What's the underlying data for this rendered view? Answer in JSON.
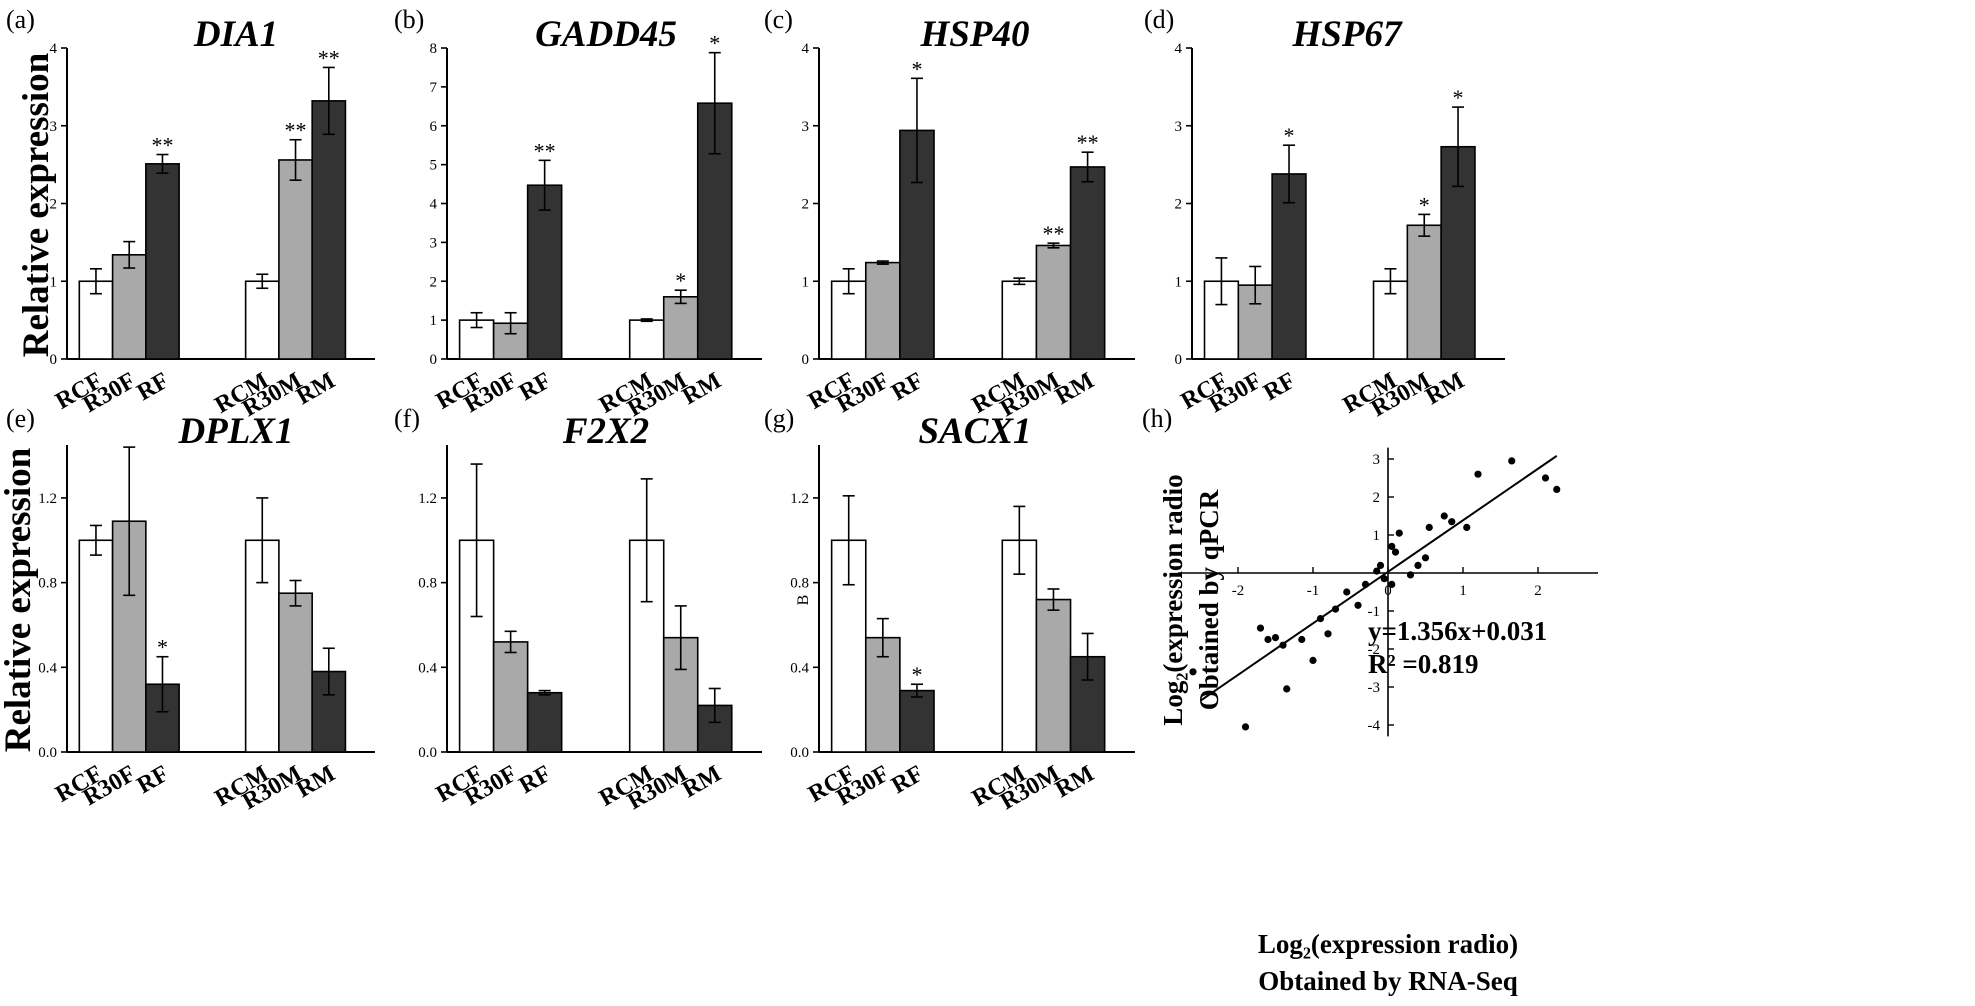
{
  "y_label": "Relative expression",
  "chart_data": [
    {
      "type": "bar",
      "panel": "(a)",
      "title": "DIA1",
      "ylabel": "Relative expression",
      "ylim": [
        0,
        4
      ],
      "yticks": [
        0,
        1,
        2,
        3,
        4
      ],
      "categories": [
        "RCF",
        "R30F",
        "RF",
        "RCM",
        "R30M",
        "RM"
      ],
      "values": [
        1.0,
        1.34,
        2.51,
        1.0,
        2.56,
        3.32
      ],
      "errors": [
        0.16,
        0.17,
        0.12,
        0.09,
        0.26,
        0.43
      ],
      "significance": [
        "",
        "",
        "**",
        "",
        "**",
        "**"
      ]
    },
    {
      "type": "bar",
      "panel": "(b)",
      "title": "GADD45",
      "ylabel": "",
      "ylim": [
        0,
        8
      ],
      "yticks": [
        0,
        1,
        2,
        3,
        4,
        5,
        6,
        7,
        8
      ],
      "categories": [
        "RCF",
        "R30F",
        "RF",
        "RCM",
        "R30M",
        "RM"
      ],
      "values": [
        1.0,
        0.92,
        4.47,
        1.0,
        1.6,
        6.58
      ],
      "errors": [
        0.19,
        0.27,
        0.64,
        0.03,
        0.17,
        1.3
      ],
      "significance": [
        "",
        "",
        "**",
        "",
        "*",
        "*"
      ]
    },
    {
      "type": "bar",
      "panel": "(c)",
      "title": "HSP40",
      "ylabel": "",
      "ylim": [
        0,
        4
      ],
      "yticks": [
        0,
        1,
        2,
        3,
        4
      ],
      "categories": [
        "RCF",
        "R30F",
        "RF",
        "RCM",
        "R30M",
        "RM"
      ],
      "values": [
        1.0,
        1.24,
        2.94,
        1.0,
        1.46,
        2.47
      ],
      "errors": [
        0.16,
        0.02,
        0.67,
        0.04,
        0.03,
        0.19
      ],
      "significance": [
        "",
        "",
        "*",
        "",
        "**",
        "**"
      ]
    },
    {
      "type": "bar",
      "panel": "(d)",
      "title": "HSP67",
      "ylabel": "",
      "ylim": [
        0,
        4
      ],
      "yticks": [
        0,
        1,
        2,
        3,
        4
      ],
      "categories": [
        "RCF",
        "R30F",
        "RF",
        "RCM",
        "R30M",
        "RM"
      ],
      "values": [
        1.0,
        0.95,
        2.38,
        1.0,
        1.72,
        2.73
      ],
      "errors": [
        0.3,
        0.24,
        0.37,
        0.16,
        0.14,
        0.51
      ],
      "significance": [
        "",
        "",
        "*",
        "",
        "*",
        "*"
      ]
    },
    {
      "type": "bar",
      "panel": "(e)",
      "title": "DPLX1",
      "ylabel": "Relative expression",
      "ylim": [
        0,
        1.45
      ],
      "yticks": [
        "0.0",
        "0.4",
        "0.8",
        "1.2"
      ],
      "categories": [
        "RCF",
        "R30F",
        "RF",
        "RCM",
        "R30M",
        "RM"
      ],
      "values": [
        1.0,
        1.09,
        0.32,
        1.0,
        0.75,
        0.38
      ],
      "errors": [
        0.07,
        0.35,
        0.13,
        0.2,
        0.06,
        0.11
      ],
      "significance": [
        "",
        "",
        "*",
        "",
        "",
        ""
      ]
    },
    {
      "type": "bar",
      "panel": "(f)",
      "title": "F2X2",
      "ylabel": "",
      "ylim": [
        0,
        1.45
      ],
      "yticks": [
        "0.0",
        "0.4",
        "0.8",
        "1.2"
      ],
      "categories": [
        "RCF",
        "R30F",
        "RF",
        "RCM",
        "R30M",
        "RM"
      ],
      "values": [
        1.0,
        0.52,
        0.28,
        1.0,
        0.54,
        0.22
      ],
      "errors": [
        0.36,
        0.05,
        0.01,
        0.29,
        0.15,
        0.08
      ],
      "significance": [
        "",
        "",
        "",
        "",
        "",
        ""
      ]
    },
    {
      "type": "bar",
      "panel": "(g)",
      "title": "SACX1",
      "ylabel": "B",
      "ylim": [
        0,
        1.45
      ],
      "yticks": [
        "0.0",
        "0.4",
        "0.8",
        "1.2"
      ],
      "categories": [
        "RCF",
        "R30F",
        "RF",
        "RCM",
        "R30M",
        "RM"
      ],
      "values": [
        1.0,
        0.54,
        0.29,
        1.0,
        0.72,
        0.45
      ],
      "errors": [
        0.21,
        0.09,
        0.03,
        0.16,
        0.05,
        0.11
      ],
      "significance": [
        "",
        "",
        "*",
        "",
        "",
        ""
      ]
    },
    {
      "type": "scatter",
      "panel": "(h)",
      "xlabel": [
        "Log₂(expression radio)",
        "Obtained by RNA-Seq"
      ],
      "ylabel": [
        "Log₂(expression radio",
        "Obtained by qPCR"
      ],
      "xlim": [
        -2.8,
        2.8
      ],
      "ylim": [
        -4.3,
        3.3
      ],
      "xticks": [
        -2,
        -1,
        0,
        1,
        2
      ],
      "yticks": [
        -4,
        -3,
        -2,
        -1,
        1,
        2,
        3
      ],
      "equation": "y=1.356x+0.031",
      "r2": "R² =0.819",
      "fit": {
        "slope": 1.356,
        "intercept": 0.031,
        "x_range": [
          -2.5,
          2.25
        ]
      },
      "points": [
        [
          -2.6,
          -2.6
        ],
        [
          -1.9,
          -4.05
        ],
        [
          -1.7,
          -1.45
        ],
        [
          -1.6,
          -1.75
        ],
        [
          -1.5,
          -1.7
        ],
        [
          -1.4,
          -1.9
        ],
        [
          -1.35,
          -3.05
        ],
        [
          -1.15,
          -1.75
        ],
        [
          -1.0,
          -2.3
        ],
        [
          -0.9,
          -1.2
        ],
        [
          -0.8,
          -1.6
        ],
        [
          -0.7,
          -0.95
        ],
        [
          -0.55,
          -0.5
        ],
        [
          -0.4,
          -0.85
        ],
        [
          -0.3,
          -0.3
        ],
        [
          -0.15,
          0.05
        ],
        [
          -0.05,
          -0.15
        ],
        [
          0.05,
          -0.3
        ],
        [
          0.1,
          0.55
        ],
        [
          0.15,
          1.05
        ],
        [
          0.05,
          0.7
        ],
        [
          -0.1,
          0.2
        ],
        [
          0.3,
          -0.05
        ],
        [
          0.4,
          0.2
        ],
        [
          0.5,
          0.4
        ],
        [
          0.55,
          1.2
        ],
        [
          0.75,
          1.5
        ],
        [
          0.85,
          1.35
        ],
        [
          1.05,
          1.2
        ],
        [
          1.2,
          2.6
        ],
        [
          1.65,
          2.95
        ],
        [
          2.1,
          2.5
        ],
        [
          2.25,
          2.2
        ]
      ]
    }
  ]
}
